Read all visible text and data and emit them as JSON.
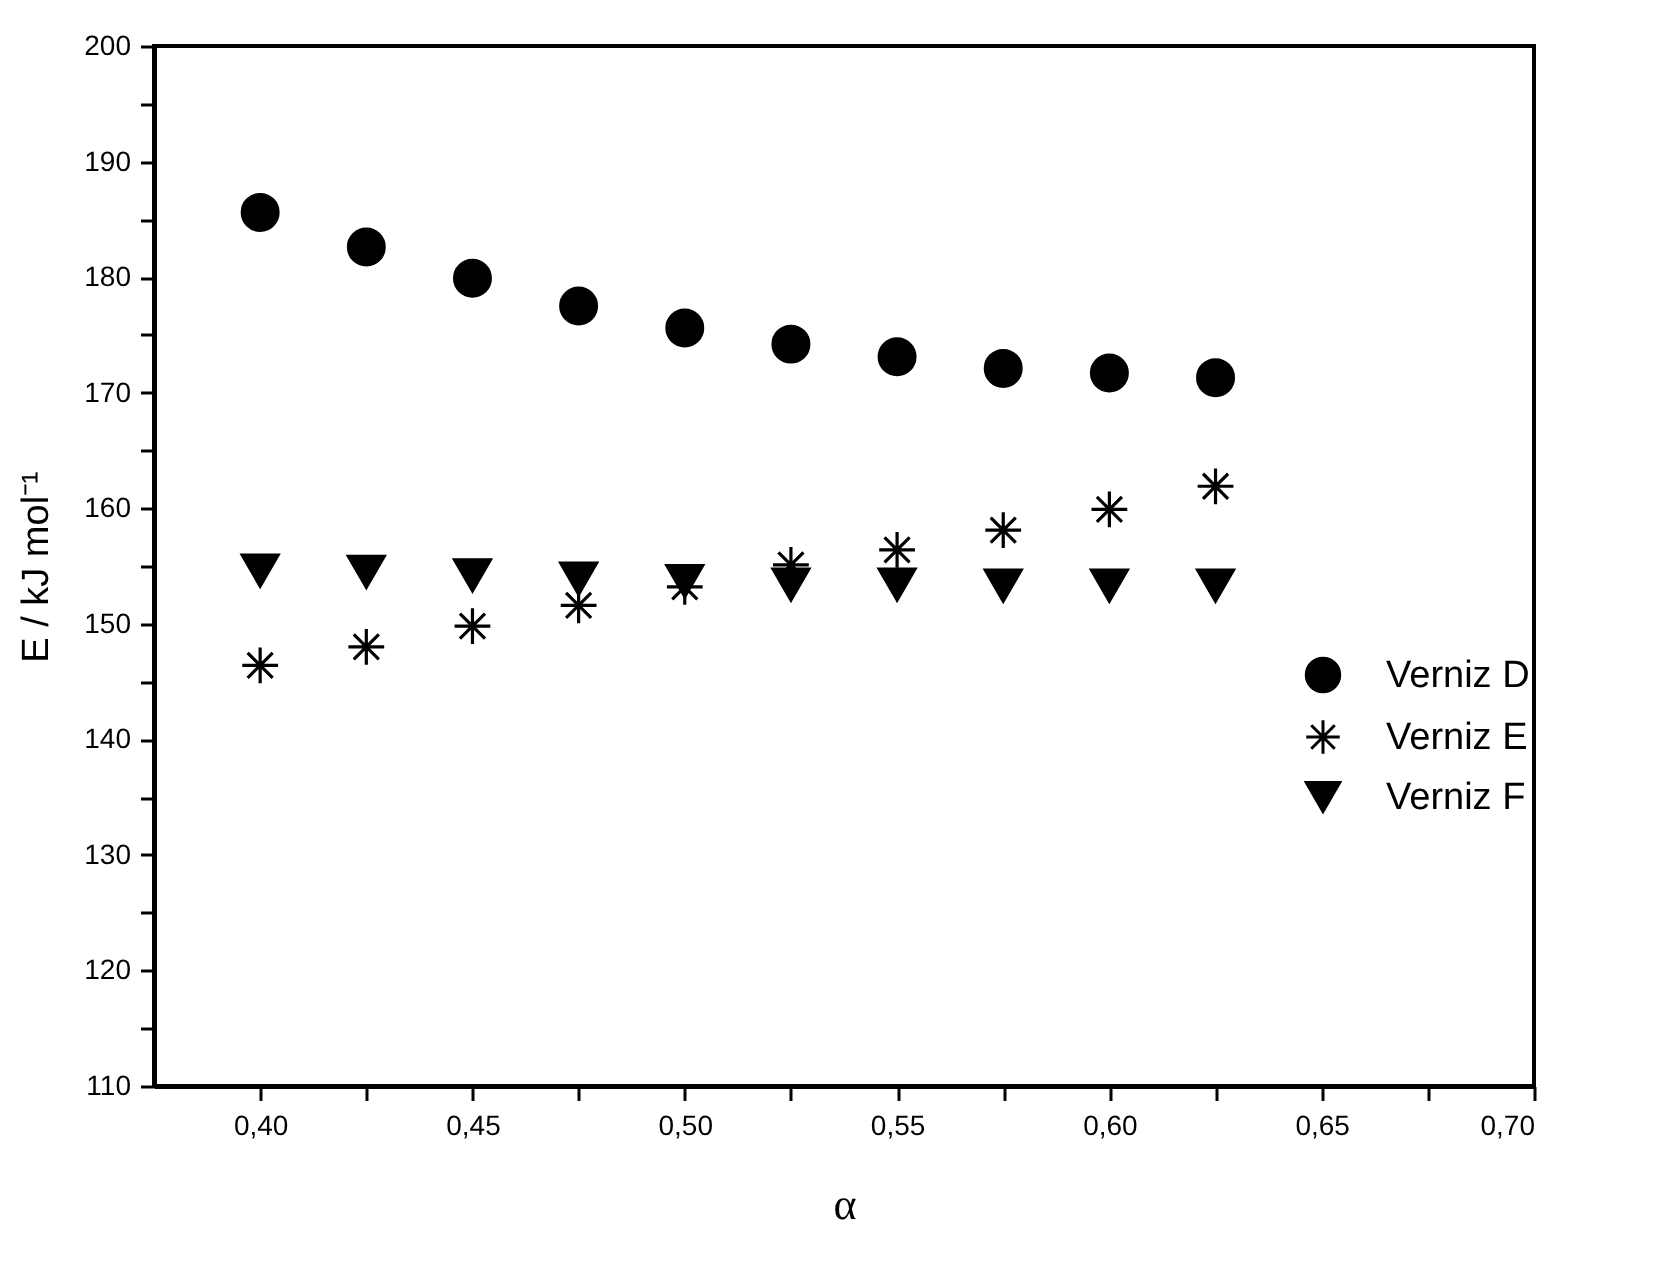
{
  "chart_data": {
    "type": "scatter",
    "xlabel": "α",
    "ylabel": "E / kJ mol⁻¹",
    "x": [
      0.4,
      0.425,
      0.45,
      0.475,
      0.5,
      0.525,
      0.55,
      0.575,
      0.6,
      0.625
    ],
    "series": [
      {
        "name": "Verniz D",
        "color": "#000000",
        "marker": "circle",
        "values": [
          185.6,
          182.6,
          179.9,
          177.5,
          175.6,
          174.2,
          173.1,
          172.1,
          171.7,
          171.3
        ]
      },
      {
        "name": "Verniz E",
        "color": "#000000",
        "marker": "cross",
        "values": [
          146.4,
          148.0,
          149.8,
          151.6,
          153.2,
          155.1,
          156.4,
          158.1,
          159.9,
          161.9
        ]
      },
      {
        "name": "Verniz F",
        "color": "#000000",
        "marker": "triangle",
        "values": [
          154.6,
          154.5,
          154.2,
          153.9,
          153.7,
          153.4,
          153.4,
          153.3,
          153.3,
          153.3
        ]
      }
    ],
    "xlim": [
      0.375,
      0.7
    ],
    "xticks": [
      {
        "value": 0.4,
        "label": "0,40"
      },
      {
        "value": 0.425,
        "label": null
      },
      {
        "value": 0.45,
        "label": "0,45"
      },
      {
        "value": 0.475,
        "label": null
      },
      {
        "value": 0.5,
        "label": "0,50"
      },
      {
        "value": 0.525,
        "label": null
      },
      {
        "value": 0.55,
        "label": "0,55"
      },
      {
        "value": 0.575,
        "label": null
      },
      {
        "value": 0.6,
        "label": "0,60"
      },
      {
        "value": 0.625,
        "label": null
      },
      {
        "value": 0.65,
        "label": "0,65"
      },
      {
        "value": 0.675,
        "label": null
      },
      {
        "value": 0.7,
        "label": "0,70"
      }
    ],
    "ylim": [
      110,
      200
    ],
    "yticks": [
      110,
      {
        "value": 115,
        "label": null
      },
      120,
      {
        "value": 125,
        "label": null
      },
      130,
      {
        "value": 135,
        "label": null
      },
      140,
      {
        "value": 145,
        "label": null
      },
      150,
      {
        "value": 155,
        "label": null
      },
      160,
      {
        "value": 165,
        "label": null
      },
      170,
      {
        "value": 175,
        "label": null
      },
      180,
      {
        "value": 185,
        "label": null
      },
      190,
      {
        "value": 195,
        "label": null
      },
      200
    ],
    "grid": false,
    "legend": "right"
  }
}
